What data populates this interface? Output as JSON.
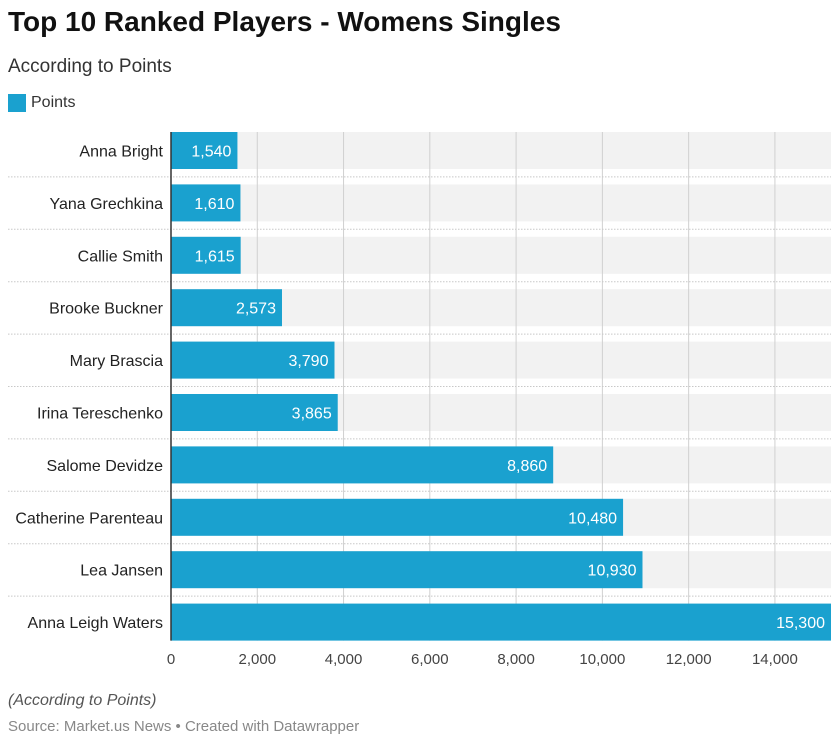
{
  "chart_data": {
    "type": "bar",
    "orientation": "horizontal",
    "title": "Top 10 Ranked Players - Womens Singles",
    "subtitle": "According to Points",
    "legend": [
      {
        "name": "Points",
        "color": "#1aa1cf"
      }
    ],
    "legend_placement": "top-left",
    "categories": [
      "Anna Bright",
      "Yana Grechkina",
      "Callie Smith",
      "Brooke Buckner",
      "Mary Brascia",
      "Irina Tereschenko",
      "Salome Devidze",
      "Catherine Parenteau",
      "Lea Jansen",
      "Anna Leigh Waters"
    ],
    "series": [
      {
        "name": "Points",
        "values": [
          1540,
          1610,
          1615,
          2573,
          3790,
          3865,
          8860,
          10480,
          10930,
          15300
        ]
      }
    ],
    "value_labels": [
      "1,540",
      "1,610",
      "1,615",
      "2,573",
      "3,790",
      "3,865",
      "8,860",
      "10,480",
      "10,930",
      "15,300"
    ],
    "xlim": [
      0,
      15300
    ],
    "xticks": [
      0,
      2000,
      4000,
      6000,
      8000,
      10000,
      12000,
      14000
    ],
    "xtick_labels": [
      "0",
      "2,000",
      "4,000",
      "6,000",
      "8,000",
      "10,000",
      "12,000",
      "14,000"
    ],
    "grid": true,
    "note": "(According to Points)",
    "source": "Source: Market.us News • Created with Datawrapper"
  },
  "colors": {
    "bar": "#1aa1cf",
    "band": "#f2f2f2",
    "grid": "#d0d0d0"
  }
}
